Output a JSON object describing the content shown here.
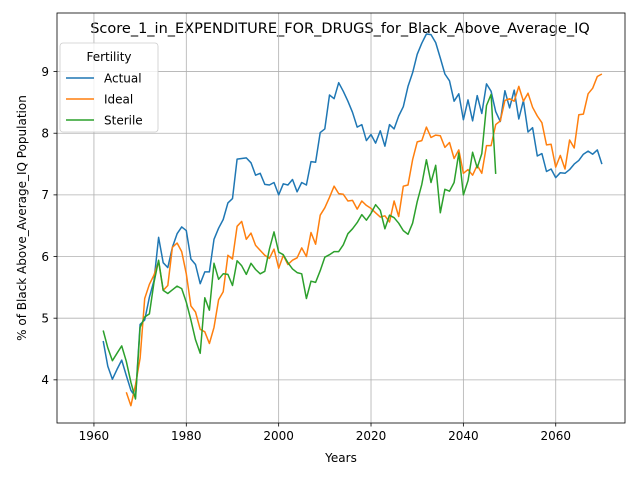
{
  "chart_data": {
    "type": "line",
    "title": "Score_1_in_EXPENDITURE_FOR_DRUGS_for_Black_Above_Average_IQ",
    "xlabel": "Years",
    "ylabel": "% of Black Above_Average_IQ Population",
    "xlim": [
      1952,
      2075
    ],
    "ylim": [
      3.3,
      9.95
    ],
    "xticks": [
      1960,
      1980,
      2000,
      2020,
      2040,
      2060
    ],
    "yticks": [
      4,
      5,
      6,
      7,
      8,
      9
    ],
    "grid": true,
    "legend": {
      "title": "Fertility",
      "placement": "top-left"
    },
    "series": [
      {
        "name": "Actual",
        "color": "#1f77b4",
        "x": [
          1962,
          1963,
          1964,
          1965,
          1966,
          1967,
          1968,
          1969,
          1970,
          1971,
          1972,
          1973,
          1974,
          1975,
          1976,
          1977,
          1978,
          1979,
          1980,
          1981,
          1982,
          1983,
          1984,
          1985,
          1986,
          1987,
          1988,
          1989,
          1990,
          1991,
          1992,
          1993,
          1994,
          1995,
          1996,
          1997,
          1998,
          1999,
          2000,
          2001,
          2002,
          2003,
          2004,
          2005,
          2006,
          2007,
          2008,
          2009,
          2010,
          2011,
          2012,
          2013,
          2014,
          2015,
          2016,
          2017,
          2018,
          2019,
          2020,
          2021,
          2022,
          2023,
          2024,
          2025,
          2026,
          2027,
          2028,
          2029,
          2030,
          2031,
          2032,
          2033,
          2034,
          2035,
          2036,
          2037,
          2038,
          2039,
          2040,
          2041,
          2042,
          2043,
          2044,
          2045,
          2046,
          2047,
          2048,
          2049,
          2050,
          2051,
          2052,
          2053,
          2054,
          2055,
          2056,
          2057,
          2058,
          2059,
          2060,
          2061,
          2062,
          2063,
          2064,
          2065,
          2066,
          2067,
          2068,
          2069,
          2070
        ],
        "values": [
          4.63,
          4.22,
          4.01,
          4.17,
          4.32,
          4.07,
          3.83,
          3.72,
          4.9,
          4.97,
          5.34,
          5.61,
          6.31,
          5.9,
          5.82,
          6.15,
          6.37,
          6.48,
          6.42,
          5.96,
          5.87,
          5.56,
          5.75,
          5.75,
          6.28,
          6.46,
          6.6,
          6.87,
          6.94,
          7.58,
          7.59,
          7.6,
          7.52,
          7.32,
          7.35,
          7.17,
          7.16,
          7.2,
          7.0,
          7.18,
          7.16,
          7.25,
          7.05,
          7.2,
          7.16,
          7.54,
          7.53,
          8.01,
          8.07,
          8.62,
          8.56,
          8.82,
          8.68,
          8.52,
          8.34,
          8.1,
          8.14,
          7.88,
          7.98,
          7.84,
          8.04,
          7.79,
          8.14,
          8.07,
          8.28,
          8.43,
          8.76,
          8.98,
          9.28,
          9.46,
          9.61,
          9.6,
          9.47,
          9.22,
          8.96,
          8.85,
          8.52,
          8.64,
          8.22,
          8.54,
          8.2,
          8.61,
          8.32,
          8.8,
          8.68,
          8.35,
          8.19,
          8.69,
          8.41,
          8.7,
          8.23,
          8.53,
          8.02,
          8.09,
          7.63,
          7.67,
          7.38,
          7.42,
          7.28,
          7.36,
          7.35,
          7.41,
          7.5,
          7.56,
          7.66,
          7.71,
          7.66,
          7.73,
          7.5
        ]
      },
      {
        "name": "Ideal",
        "color": "#ff7f0e",
        "x": [
          1967,
          1968,
          1969,
          1970,
          1971,
          1972,
          1973,
          1974,
          1975,
          1976,
          1977,
          1978,
          1979,
          1980,
          1981,
          1982,
          1983,
          1984,
          1985,
          1986,
          1987,
          1988,
          1989,
          1990,
          1991,
          1992,
          1993,
          1994,
          1995,
          1996,
          1997,
          1998,
          1999,
          2000,
          2001,
          2002,
          2003,
          2004,
          2005,
          2006,
          2007,
          2008,
          2009,
          2010,
          2011,
          2012,
          2013,
          2014,
          2015,
          2016,
          2017,
          2018,
          2019,
          2020,
          2021,
          2022,
          2023,
          2024,
          2025,
          2026,
          2027,
          2028,
          2029,
          2030,
          2031,
          2032,
          2033,
          2034,
          2035,
          2036,
          2037,
          2038,
          2039,
          2040,
          2041,
          2042,
          2043,
          2044,
          2045,
          2046,
          2047,
          2048,
          2049,
          2050,
          2051,
          2052,
          2053,
          2054,
          2055,
          2056,
          2057,
          2058,
          2059,
          2060,
          2061,
          2062,
          2063,
          2064,
          2065,
          2066,
          2067,
          2068,
          2069,
          2070
        ],
        "values": [
          3.8,
          3.58,
          3.92,
          4.35,
          5.32,
          5.55,
          5.7,
          5.92,
          5.45,
          5.53,
          6.15,
          6.22,
          6.08,
          5.72,
          5.2,
          5.1,
          4.82,
          4.78,
          4.59,
          4.85,
          5.3,
          5.43,
          6.02,
          5.96,
          6.49,
          6.57,
          6.28,
          6.38,
          6.18,
          6.1,
          6.02,
          5.97,
          6.12,
          5.81,
          6.02,
          5.87,
          5.94,
          5.98,
          6.14,
          6.0,
          6.39,
          6.2,
          6.67,
          6.79,
          6.96,
          7.14,
          7.02,
          7.01,
          6.9,
          6.91,
          6.77,
          6.9,
          6.83,
          6.78,
          6.71,
          6.64,
          6.66,
          6.56,
          6.9,
          6.65,
          7.14,
          7.16,
          7.57,
          7.86,
          7.88,
          8.1,
          7.93,
          7.97,
          7.96,
          7.77,
          7.85,
          7.59,
          7.73,
          7.35,
          7.41,
          7.32,
          7.48,
          7.35,
          7.8,
          7.8,
          8.14,
          8.2,
          8.53,
          8.56,
          8.52,
          8.76,
          8.52,
          8.65,
          8.42,
          8.28,
          8.17,
          7.81,
          7.82,
          7.45,
          7.64,
          7.42,
          7.89,
          7.76,
          8.3,
          8.31,
          8.64,
          8.73,
          8.92,
          8.96
        ]
      },
      {
        "name": "Sterile",
        "color": "#2ca02c",
        "x": [
          1962,
          1963,
          1964,
          1965,
          1966,
          1967,
          1968,
          1969,
          1970,
          1971,
          1972,
          1973,
          1974,
          1975,
          1976,
          1977,
          1978,
          1979,
          1980,
          1981,
          1982,
          1983,
          1984,
          1985,
          1986,
          1987,
          1988,
          1989,
          1990,
          1991,
          1992,
          1993,
          1994,
          1995,
          1996,
          1997,
          1998,
          1999,
          2000,
          2001,
          2002,
          2003,
          2004,
          2005,
          2006,
          2007,
          2008,
          2009,
          2010,
          2011,
          2012,
          2013,
          2014,
          2015,
          2016,
          2017,
          2018,
          2019,
          2020,
          2021,
          2022,
          2023,
          2024,
          2025,
          2026,
          2027,
          2028,
          2029,
          2030,
          2031,
          2032,
          2033,
          2034,
          2035,
          2036,
          2037,
          2038,
          2039,
          2040,
          2041,
          2042,
          2043,
          2044,
          2045,
          2046,
          2047
        ],
        "values": [
          4.8,
          4.52,
          4.31,
          4.43,
          4.55,
          4.3,
          3.96,
          3.69,
          4.85,
          5.02,
          5.07,
          5.58,
          5.94,
          5.45,
          5.4,
          5.46,
          5.52,
          5.48,
          5.26,
          4.97,
          4.65,
          4.43,
          5.33,
          5.13,
          5.89,
          5.63,
          5.72,
          5.71,
          5.53,
          5.93,
          5.85,
          5.71,
          5.89,
          5.79,
          5.72,
          5.76,
          6.12,
          6.4,
          6.07,
          6.03,
          5.9,
          5.8,
          5.74,
          5.72,
          5.32,
          5.6,
          5.58,
          5.77,
          5.99,
          6.03,
          6.08,
          6.08,
          6.19,
          6.37,
          6.45,
          6.55,
          6.68,
          6.59,
          6.7,
          6.84,
          6.75,
          6.45,
          6.67,
          6.63,
          6.54,
          6.42,
          6.36,
          6.54,
          6.89,
          7.17,
          7.57,
          7.2,
          7.48,
          6.71,
          7.09,
          7.06,
          7.2,
          7.68,
          7.0,
          7.23,
          7.69,
          7.44,
          7.67,
          8.45,
          8.63,
          7.34
        ]
      }
    ]
  }
}
